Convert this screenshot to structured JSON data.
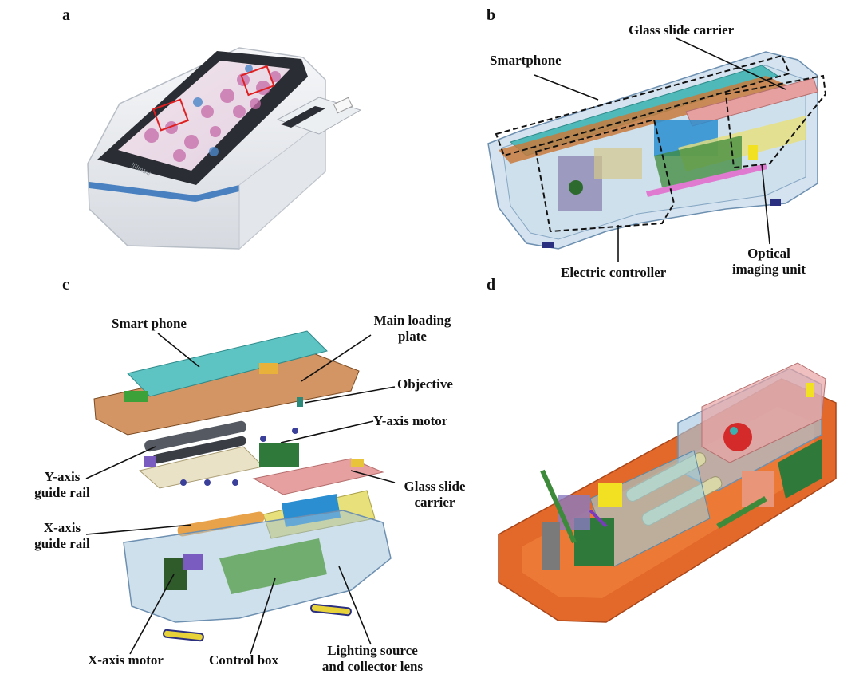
{
  "panels": {
    "a": "a",
    "b": "b",
    "c": "c",
    "d": "d"
  },
  "device_brand": "IIIIIAIAI",
  "labels_b": {
    "glass_slide_carrier": "Glass slide carrier",
    "smartphone": "Smartphone",
    "electric_controller": "Electric controller",
    "optical_imaging_unit_line1": "Optical",
    "optical_imaging_unit_line2": "imaging unit"
  },
  "labels_c": {
    "smart_phone": "Smart phone",
    "main_loading_plate_line1": "Main loading",
    "main_loading_plate_line2": "plate",
    "objective": "Objective",
    "y_axis_motor": "Y-axis motor",
    "y_axis_guide_rail_line1": "Y-axis",
    "y_axis_guide_rail_line2": "guide rail",
    "glass_slide_carrier_line1": "Glass slide",
    "glass_slide_carrier_line2": "carrier",
    "x_axis_guide_rail_line1": "X-axis",
    "x_axis_guide_rail_line2": "guide rail",
    "x_axis_motor": "X-axis motor",
    "control_box": "Control box",
    "lighting_line1": "Lighting source",
    "lighting_line2": "and collector lens"
  },
  "colors": {
    "housing_blue": "#9fc1dc",
    "phone_teal": "#4fb8b8",
    "copper": "#c87a3c",
    "orange_plate": "#e2692a",
    "pink": "#e7a0a0",
    "green": "#3d8a3a",
    "yellow": "#e8d23a"
  }
}
